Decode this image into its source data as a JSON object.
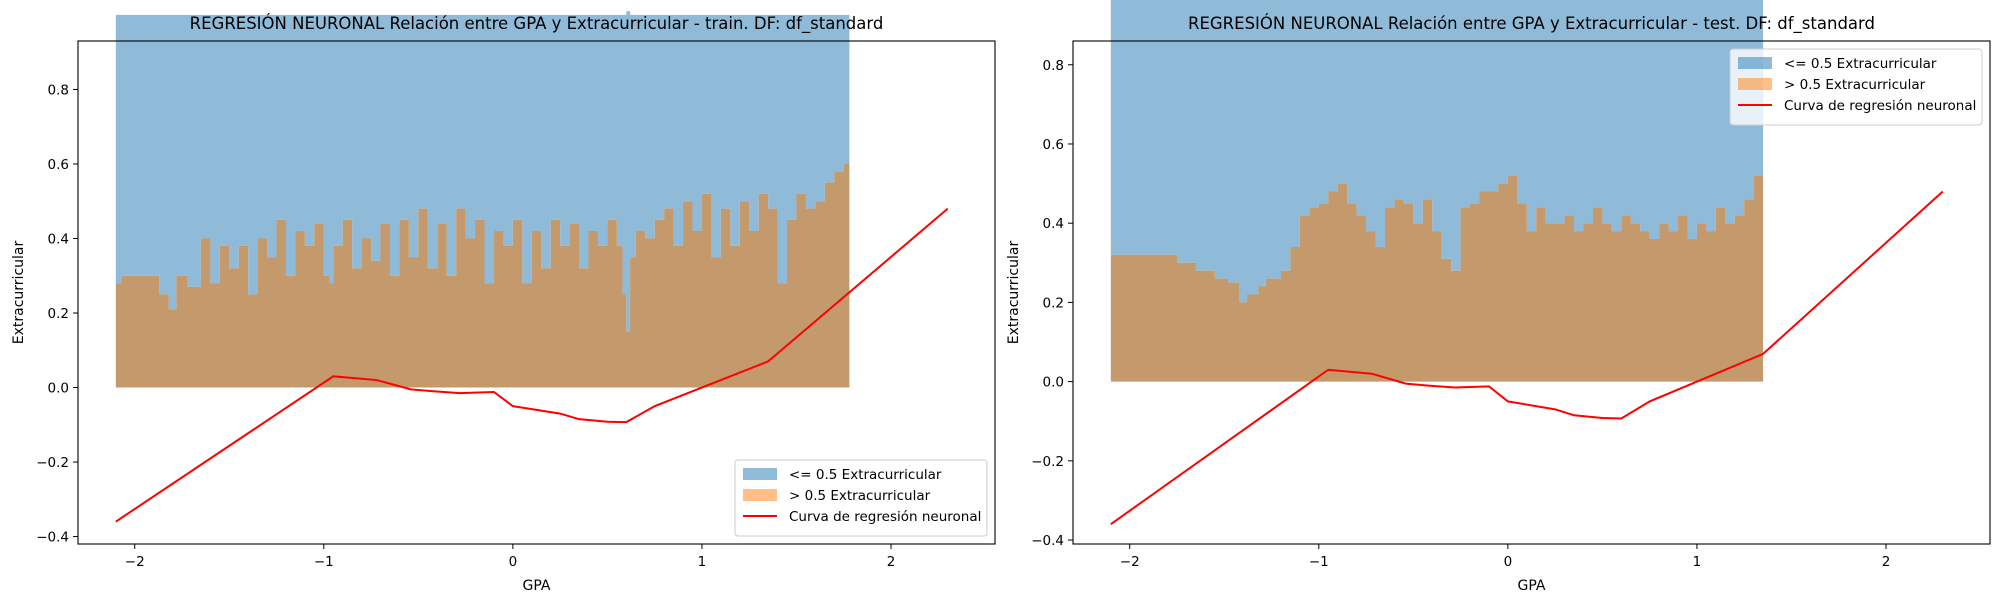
{
  "chart_data": [
    {
      "type": "area",
      "title": "REGRESIÓN NEURONAL Relación entre GPA y Extracurricular - train. DF: df_standard",
      "xlabel": "GPA",
      "ylabel": "Extracurricular",
      "xlim": [
        -2.3,
        2.55
      ],
      "ylim": [
        -0.42,
        0.93
      ],
      "xticks": [
        -2,
        -1,
        0,
        1,
        2
      ],
      "xtick_labels": [
        "−2",
        "−1",
        "0",
        "1",
        "2"
      ],
      "yticks": [
        -0.4,
        -0.2,
        0.0,
        0.2,
        0.4,
        0.6,
        0.8
      ],
      "ytick_labels": [
        "−0.4",
        "−0.2",
        "0.0",
        "0.2",
        "0.4",
        "0.6",
        "0.8"
      ],
      "grid": false,
      "legend": "lower-right",
      "series": [
        {
          "name": "<= 0.5 Extracurricular",
          "kind": "stacked-area-top",
          "color": "#1f77b4",
          "opacity": 0.5,
          "x": [
            -2.1,
            -2.08,
            -2.07,
            -1.95,
            -1.87,
            -1.82,
            -1.78,
            -1.72,
            -1.65,
            -1.6,
            -1.55,
            -1.5,
            -1.45,
            -1.4,
            -1.35,
            -1.3,
            -1.25,
            -1.2,
            -1.15,
            -1.1,
            -1.05,
            -1.0,
            -0.97,
            -0.95,
            -0.9,
            -0.85,
            -0.8,
            -0.75,
            -0.7,
            -0.65,
            -0.6,
            -0.55,
            -0.5,
            -0.45,
            -0.4,
            -0.35,
            -0.3,
            -0.25,
            -0.2,
            -0.15,
            -0.1,
            -0.05,
            0.0,
            0.05,
            0.1,
            0.15,
            0.2,
            0.25,
            0.3,
            0.35,
            0.4,
            0.45,
            0.5,
            0.55,
            0.58,
            0.6,
            0.62,
            0.65,
            0.7,
            0.75,
            0.8,
            0.85,
            0.9,
            0.95,
            1.0,
            1.05,
            1.1,
            1.15,
            1.2,
            1.25,
            1.3,
            1.35,
            1.4,
            1.45,
            1.5,
            1.55,
            1.6,
            1.65,
            1.7,
            1.75,
            1.78
          ],
          "values": [
            0.72,
            0.72,
            0.7,
            0.7,
            0.75,
            0.79,
            0.7,
            0.73,
            0.6,
            0.72,
            0.62,
            0.68,
            0.62,
            0.75,
            0.6,
            0.65,
            0.55,
            0.7,
            0.58,
            0.62,
            0.56,
            0.7,
            0.72,
            0.62,
            0.55,
            0.68,
            0.6,
            0.66,
            0.56,
            0.7,
            0.55,
            0.65,
            0.52,
            0.68,
            0.56,
            0.7,
            0.52,
            0.6,
            0.55,
            0.72,
            0.58,
            0.62,
            0.55,
            0.72,
            0.58,
            0.68,
            0.55,
            0.62,
            0.56,
            0.68,
            0.58,
            0.62,
            0.55,
            0.62,
            0.75,
            0.86,
            0.65,
            0.58,
            0.6,
            0.55,
            0.52,
            0.62,
            0.5,
            0.58,
            0.48,
            0.65,
            0.52,
            0.62,
            0.5,
            0.58,
            0.48,
            0.52,
            0.72,
            0.55,
            0.48,
            0.52,
            0.5,
            0.45,
            0.42,
            0.4,
            0.38
          ]
        },
        {
          "name": "> 0.5 Extracurricular",
          "kind": "area-from-zero",
          "color": "#ff7f0e",
          "opacity": 0.5,
          "x": [
            -2.1,
            -2.08,
            -2.07,
            -1.95,
            -1.87,
            -1.82,
            -1.78,
            -1.72,
            -1.65,
            -1.6,
            -1.55,
            -1.5,
            -1.45,
            -1.4,
            -1.35,
            -1.3,
            -1.25,
            -1.2,
            -1.15,
            -1.1,
            -1.05,
            -1.0,
            -0.97,
            -0.95,
            -0.9,
            -0.85,
            -0.8,
            -0.75,
            -0.7,
            -0.65,
            -0.6,
            -0.55,
            -0.5,
            -0.45,
            -0.4,
            -0.35,
            -0.3,
            -0.25,
            -0.2,
            -0.15,
            -0.1,
            -0.05,
            0.0,
            0.05,
            0.1,
            0.15,
            0.2,
            0.25,
            0.3,
            0.35,
            0.4,
            0.45,
            0.5,
            0.55,
            0.58,
            0.6,
            0.62,
            0.65,
            0.7,
            0.75,
            0.8,
            0.85,
            0.9,
            0.95,
            1.0,
            1.05,
            1.1,
            1.15,
            1.2,
            1.25,
            1.3,
            1.35,
            1.4,
            1.45,
            1.5,
            1.55,
            1.6,
            1.65,
            1.7,
            1.75,
            1.78
          ],
          "values": [
            0.28,
            0.28,
            0.3,
            0.3,
            0.25,
            0.21,
            0.3,
            0.27,
            0.4,
            0.28,
            0.38,
            0.32,
            0.38,
            0.25,
            0.4,
            0.35,
            0.45,
            0.3,
            0.42,
            0.38,
            0.44,
            0.3,
            0.28,
            0.38,
            0.45,
            0.32,
            0.4,
            0.34,
            0.44,
            0.3,
            0.45,
            0.35,
            0.48,
            0.32,
            0.44,
            0.3,
            0.48,
            0.4,
            0.45,
            0.28,
            0.42,
            0.38,
            0.45,
            0.28,
            0.42,
            0.32,
            0.45,
            0.38,
            0.44,
            0.32,
            0.42,
            0.38,
            0.45,
            0.38,
            0.25,
            0.15,
            0.35,
            0.42,
            0.4,
            0.45,
            0.48,
            0.38,
            0.5,
            0.42,
            0.52,
            0.35,
            0.48,
            0.38,
            0.5,
            0.42,
            0.52,
            0.48,
            0.28,
            0.45,
            0.52,
            0.48,
            0.5,
            0.55,
            0.58,
            0.6,
            0.62
          ]
        },
        {
          "name": "Curva de regresión neuronal",
          "kind": "line",
          "color": "#ff0000",
          "x": [
            -2.1,
            -0.95,
            -0.72,
            -0.54,
            -0.42,
            -0.28,
            -0.1,
            0.0,
            0.25,
            0.35,
            0.5,
            0.6,
            0.75,
            1.35,
            2.3
          ],
          "values": [
            -0.36,
            0.03,
            0.02,
            -0.005,
            -0.01,
            -0.015,
            -0.012,
            -0.05,
            -0.07,
            -0.085,
            -0.092,
            -0.093,
            -0.05,
            0.07,
            0.48
          ]
        }
      ]
    },
    {
      "type": "area",
      "title": "REGRESIÓN NEURONAL Relación entre GPA y Extracurricular - test. DF: df_standard",
      "xlabel": "GPA",
      "ylabel": "Extracurricular",
      "xlim": [
        -2.3,
        2.55
      ],
      "ylim": [
        -0.41,
        0.86
      ],
      "xticks": [
        -2,
        -1,
        0,
        1,
        2
      ],
      "xtick_labels": [
        "−2",
        "−1",
        "0",
        "1",
        "2"
      ],
      "yticks": [
        -0.4,
        -0.2,
        0.0,
        0.2,
        0.4,
        0.6,
        0.8
      ],
      "ytick_labels": [
        "−0.4",
        "−0.2",
        "0.0",
        "0.2",
        "0.4",
        "0.6",
        "0.8"
      ],
      "grid": false,
      "legend": "upper-right",
      "series": [
        {
          "name": "<= 0.5 Extracurricular",
          "kind": "stacked-area-top",
          "color": "#1f77b4",
          "opacity": 0.5,
          "x": [
            -2.1,
            -1.88,
            -1.75,
            -1.65,
            -1.55,
            -1.48,
            -1.42,
            -1.38,
            -1.32,
            -1.28,
            -1.2,
            -1.15,
            -1.1,
            -1.05,
            -1.0,
            -0.95,
            -0.9,
            -0.85,
            -0.8,
            -0.75,
            -0.7,
            -0.65,
            -0.6,
            -0.55,
            -0.5,
            -0.45,
            -0.4,
            -0.35,
            -0.3,
            -0.25,
            -0.2,
            -0.15,
            -0.1,
            -0.05,
            0.0,
            0.05,
            0.1,
            0.15,
            0.2,
            0.25,
            0.3,
            0.35,
            0.4,
            0.45,
            0.5,
            0.55,
            0.6,
            0.65,
            0.7,
            0.75,
            0.8,
            0.85,
            0.9,
            0.95,
            1.0,
            1.05,
            1.1,
            1.15,
            1.2,
            1.25,
            1.3,
            1.35
          ],
          "values": [
            0.68,
            0.68,
            0.7,
            0.72,
            0.74,
            0.75,
            0.8,
            0.78,
            0.76,
            0.74,
            0.72,
            0.66,
            0.58,
            0.56,
            0.55,
            0.52,
            0.5,
            0.55,
            0.58,
            0.62,
            0.66,
            0.56,
            0.54,
            0.55,
            0.6,
            0.54,
            0.62,
            0.69,
            0.72,
            0.56,
            0.55,
            0.52,
            0.52,
            0.5,
            0.48,
            0.55,
            0.62,
            0.56,
            0.6,
            0.6,
            0.58,
            0.62,
            0.6,
            0.56,
            0.6,
            0.62,
            0.58,
            0.6,
            0.62,
            0.64,
            0.6,
            0.62,
            0.58,
            0.64,
            0.6,
            0.62,
            0.56,
            0.6,
            0.58,
            0.54,
            0.48,
            0.44
          ]
        },
        {
          "name": "> 0.5 Extracurricular",
          "kind": "area-from-zero",
          "color": "#ff7f0e",
          "opacity": 0.5,
          "x": [
            -2.1,
            -1.88,
            -1.75,
            -1.65,
            -1.55,
            -1.48,
            -1.42,
            -1.38,
            -1.32,
            -1.28,
            -1.2,
            -1.15,
            -1.1,
            -1.05,
            -1.0,
            -0.95,
            -0.9,
            -0.85,
            -0.8,
            -0.75,
            -0.7,
            -0.65,
            -0.6,
            -0.55,
            -0.5,
            -0.45,
            -0.4,
            -0.35,
            -0.3,
            -0.25,
            -0.2,
            -0.15,
            -0.1,
            -0.05,
            0.0,
            0.05,
            0.1,
            0.15,
            0.2,
            0.25,
            0.3,
            0.35,
            0.4,
            0.45,
            0.5,
            0.55,
            0.6,
            0.65,
            0.7,
            0.75,
            0.8,
            0.85,
            0.9,
            0.95,
            1.0,
            1.05,
            1.1,
            1.15,
            1.2,
            1.25,
            1.3,
            1.35
          ],
          "values": [
            0.32,
            0.32,
            0.3,
            0.28,
            0.26,
            0.25,
            0.2,
            0.22,
            0.24,
            0.26,
            0.28,
            0.34,
            0.42,
            0.44,
            0.45,
            0.48,
            0.5,
            0.45,
            0.42,
            0.38,
            0.34,
            0.44,
            0.46,
            0.45,
            0.4,
            0.46,
            0.38,
            0.31,
            0.28,
            0.44,
            0.45,
            0.48,
            0.48,
            0.5,
            0.52,
            0.45,
            0.38,
            0.44,
            0.4,
            0.4,
            0.42,
            0.38,
            0.4,
            0.44,
            0.4,
            0.38,
            0.42,
            0.4,
            0.38,
            0.36,
            0.4,
            0.38,
            0.42,
            0.36,
            0.4,
            0.38,
            0.44,
            0.4,
            0.42,
            0.46,
            0.52,
            0.56
          ]
        },
        {
          "name": "Curva de regresión neuronal",
          "kind": "line",
          "color": "#ff0000",
          "x": [
            -2.1,
            -0.95,
            -0.72,
            -0.54,
            -0.42,
            -0.28,
            -0.1,
            0.0,
            0.25,
            0.35,
            0.5,
            0.6,
            0.75,
            1.35,
            2.3
          ],
          "values": [
            -0.36,
            0.03,
            0.02,
            -0.005,
            -0.01,
            -0.015,
            -0.012,
            -0.05,
            -0.07,
            -0.085,
            -0.092,
            -0.093,
            -0.05,
            0.07,
            0.48
          ]
        }
      ]
    }
  ]
}
